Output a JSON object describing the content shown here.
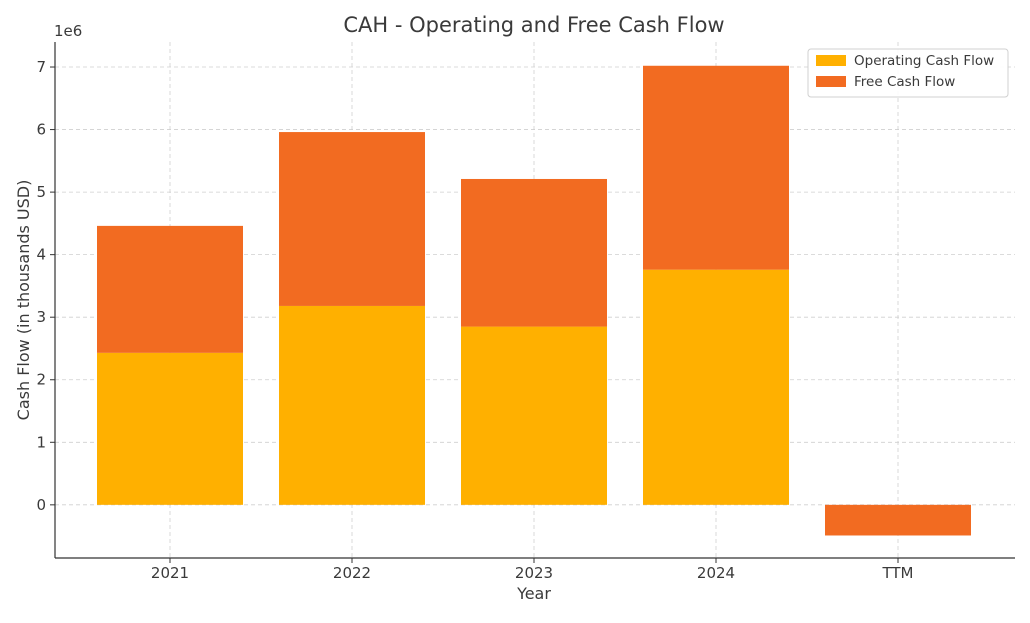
{
  "chart_data": {
    "type": "bar",
    "stacked": true,
    "title": "CAH - Operating and Free Cash Flow",
    "xlabel": "Year",
    "ylabel": "Cash Flow (in thousands USD)",
    "y_scale_label": "1e6",
    "y_scale_factor": 1000000,
    "categories": [
      "2021",
      "2022",
      "2023",
      "2024",
      "TTM"
    ],
    "series": [
      {
        "name": "Operating Cash Flow",
        "color": "#ffb000",
        "values": [
          2430000,
          3180000,
          2850000,
          3760000,
          0
        ]
      },
      {
        "name": "Free Cash Flow",
        "color": "#f26b21",
        "values": [
          2030000,
          2780000,
          2360000,
          3260000,
          -490000
        ]
      }
    ],
    "ylim": [
      -850000,
      7400000
    ],
    "yticks": [
      0,
      1,
      2,
      3,
      4,
      5,
      6,
      7
    ],
    "grid": true,
    "legend_position": "top-right"
  }
}
